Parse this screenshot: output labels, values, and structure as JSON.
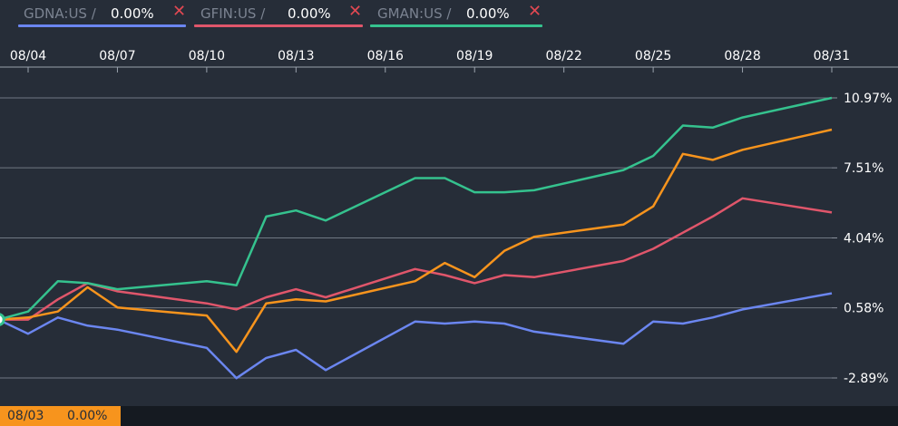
{
  "legend": [
    {
      "symbol": "GDNA:US /",
      "value": "0.00%",
      "close": "✕",
      "color": "#6b86f0"
    },
    {
      "symbol": "GFIN:US /",
      "value": "0.00%",
      "close": "✕",
      "color": "#e0566b"
    },
    {
      "symbol": "GMAN:US /",
      "value": "0.00%",
      "close": "✕",
      "color": "#35c28e"
    }
  ],
  "crosshair": {
    "date": "08/03",
    "value": "0.00%"
  },
  "chart_data": {
    "type": "line",
    "x_ticks": [
      "08/04",
      "08/07",
      "08/10",
      "08/13",
      "08/16",
      "08/19",
      "08/22",
      "08/25",
      "08/28",
      "08/31"
    ],
    "y_ticks": [
      "10.97%",
      "7.51%",
      "4.04%",
      "0.58%",
      "-2.89%"
    ],
    "y_tick_values": [
      10.97,
      7.51,
      4.04,
      0.58,
      -2.89
    ],
    "ylim": [
      -2.89,
      10.97
    ],
    "grid": "horizontal",
    "legend_position": "top-left",
    "series": [
      {
        "name": "GDNA:US",
        "color": "#6b86f0",
        "x": [
          "08/03",
          "08/04",
          "08/05",
          "08/06",
          "08/07",
          "08/10",
          "08/11",
          "08/12",
          "08/13",
          "08/14",
          "08/17",
          "08/18",
          "08/19",
          "08/20",
          "08/21",
          "08/24",
          "08/25",
          "08/26",
          "08/27",
          "08/28",
          "08/31"
        ],
        "y": [
          0,
          -0.7,
          0.1,
          -0.3,
          -0.5,
          -1.4,
          -2.9,
          -1.9,
          -1.5,
          -2.5,
          -0.1,
          -0.2,
          -0.1,
          -0.2,
          -0.6,
          -1.2,
          -0.1,
          -0.2,
          0.1,
          0.5,
          1.3
        ]
      },
      {
        "name": "GFIN:US",
        "color": "#e0566b",
        "x": [
          "08/03",
          "08/04",
          "08/05",
          "08/06",
          "08/07",
          "08/10",
          "08/11",
          "08/12",
          "08/13",
          "08/14",
          "08/17",
          "08/18",
          "08/19",
          "08/20",
          "08/21",
          "08/24",
          "08/25",
          "08/26",
          "08/27",
          "08/28",
          "08/31"
        ],
        "y": [
          0,
          0,
          1,
          1.8,
          1.4,
          0.8,
          0.5,
          1.1,
          1.5,
          1.1,
          2.5,
          2.2,
          1.8,
          2.2,
          2.1,
          2.9,
          3.5,
          4.3,
          5.1,
          6.0,
          5.3
        ]
      },
      {
        "name": "GMAN:US",
        "color": "#35c28e",
        "x": [
          "08/03",
          "08/04",
          "08/05",
          "08/06",
          "08/07",
          "08/10",
          "08/11",
          "08/12",
          "08/13",
          "08/14",
          "08/17",
          "08/18",
          "08/19",
          "08/20",
          "08/21",
          "08/24",
          "08/25",
          "08/26",
          "08/27",
          "08/28",
          "08/31"
        ],
        "y": [
          0,
          0.4,
          1.9,
          1.8,
          1.5,
          1.9,
          1.7,
          5.1,
          5.4,
          4.9,
          7.0,
          7.0,
          6.3,
          6.3,
          6.4,
          7.4,
          8.1,
          9.6,
          9.5,
          10.0,
          10.97
        ]
      },
      {
        "name": "",
        "color": "#f7941d",
        "x": [
          "08/03",
          "08/04",
          "08/05",
          "08/06",
          "08/07",
          "08/10",
          "08/11",
          "08/12",
          "08/13",
          "08/14",
          "08/17",
          "08/18",
          "08/19",
          "08/20",
          "08/21",
          "08/24",
          "08/25",
          "08/26",
          "08/27",
          "08/28",
          "08/31"
        ],
        "y": [
          0,
          0.1,
          0.4,
          1.6,
          0.6,
          0.2,
          -1.6,
          0.8,
          1.0,
          0.9,
          1.9,
          2.8,
          2.1,
          3.4,
          4.1,
          4.7,
          5.6,
          8.2,
          7.9,
          8.4,
          9.4
        ]
      }
    ]
  }
}
